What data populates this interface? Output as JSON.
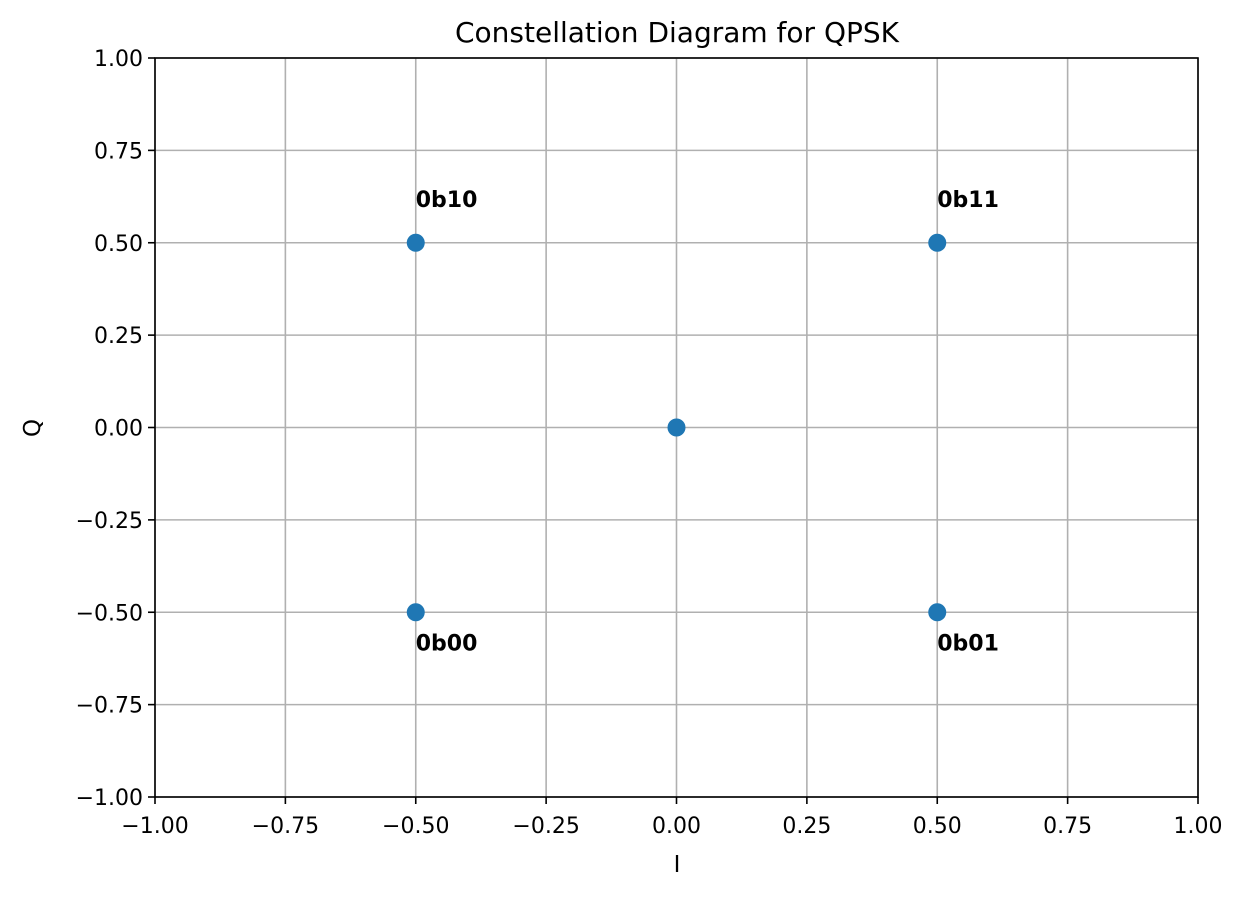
{
  "chart_data": {
    "type": "scatter",
    "title": "Constellation Diagram for QPSK",
    "xlabel": "I",
    "ylabel": "Q",
    "xlim": [
      -1.0,
      1.0
    ],
    "ylim": [
      -1.0,
      1.0
    ],
    "xticks": [
      -1.0,
      -0.75,
      -0.5,
      -0.25,
      0.0,
      0.25,
      0.5,
      0.75,
      1.0
    ],
    "yticks": [
      -1.0,
      -0.75,
      -0.5,
      -0.25,
      0.0,
      0.25,
      0.5,
      0.75,
      1.0
    ],
    "xtick_labels": [
      "−1.00",
      "−0.75",
      "−0.50",
      "−0.25",
      "0.00",
      "0.25",
      "0.50",
      "0.75",
      "1.00"
    ],
    "ytick_labels": [
      "−1.00",
      "−0.75",
      "−0.50",
      "−0.25",
      "0.00",
      "0.25",
      "0.50",
      "0.75",
      "1.00"
    ],
    "grid": true,
    "marker_color": "#1f77b4",
    "points": [
      {
        "x": 0.0,
        "y": 0.0,
        "label": ""
      },
      {
        "x": -0.5,
        "y": -0.5,
        "label": "0b00"
      },
      {
        "x": 0.5,
        "y": -0.5,
        "label": "0b01"
      },
      {
        "x": -0.5,
        "y": 0.5,
        "label": "0b10"
      },
      {
        "x": 0.5,
        "y": 0.5,
        "label": "0b11"
      }
    ]
  }
}
